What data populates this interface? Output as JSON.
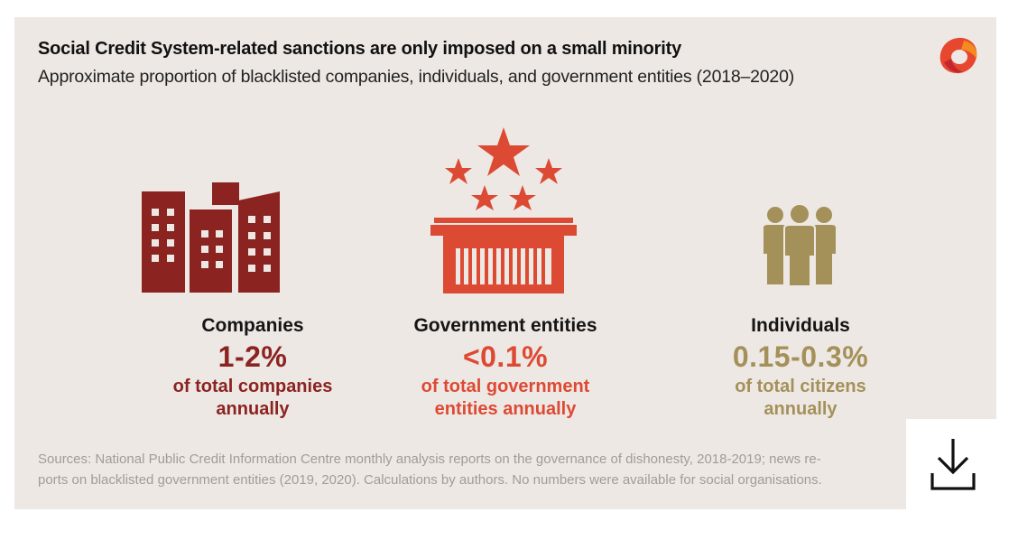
{
  "header": {
    "title": "Social Credit System-related sanctions are only imposed on a small minority",
    "subtitle": "Approximate proportion of blacklisted companies, individuals, and government entities (2018–2020)"
  },
  "logo_icon": "brand-logo-icon",
  "colors": {
    "background": "#eee8e4",
    "companies": "#8b2321",
    "government": "#dd4a33",
    "individuals": "#a4915a",
    "sources_text": "#a19c98"
  },
  "stats": [
    {
      "icon": "buildings-icon",
      "label": "Companies",
      "value": "1-2%",
      "line1": "of total companies",
      "line2": "annually"
    },
    {
      "icon": "government-building-stars-icon",
      "label": "Government entities",
      "value": "<0.1%",
      "line1": "of total government",
      "line2": "entities annually"
    },
    {
      "icon": "people-group-icon",
      "label": "Individuals",
      "value": "0.15-0.3%",
      "line1": "of total citizens",
      "line2": "annually"
    }
  ],
  "sources": {
    "line1": "Sources: National Public Credit Information Centre monthly analysis reports on the governance of dishonesty, 2018-2019; news re-",
    "line2": "ports on blacklisted government entities (2019, 2020). Calculations by authors. No numbers were available for social organisations."
  },
  "download_icon": "download-icon"
}
